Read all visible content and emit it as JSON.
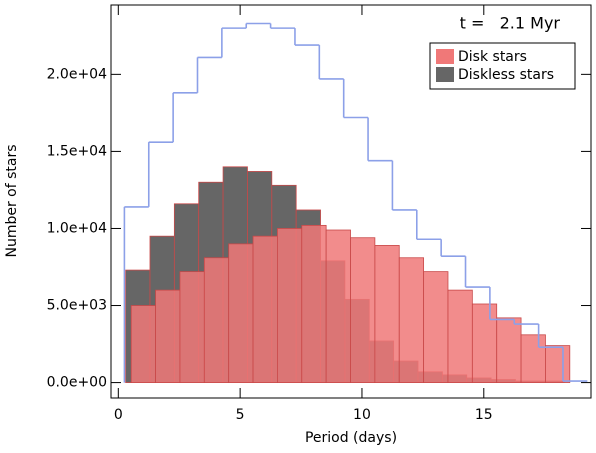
{
  "chart_data": {
    "type": "histogram",
    "annotation": "t =   2.1 Myr",
    "xlabel": "Period (days)",
    "ylabel": "Number of stars",
    "xlim": [
      -0.3,
      19.4
    ],
    "ylim": [
      -1000,
      24500
    ],
    "xticks": [
      0,
      5,
      10,
      15
    ],
    "yticks": [
      {
        "value": 0,
        "label": "0.0e+00"
      },
      {
        "value": 5000,
        "label": "5.0e+03"
      },
      {
        "value": 10000,
        "label": "1.0e+04"
      },
      {
        "value": 15000,
        "label": "1.5e+04"
      },
      {
        "value": 20000,
        "label": "2.0e+04"
      }
    ],
    "legend": "upper right",
    "series": [
      {
        "name": "Diskless stars",
        "color": "#666666",
        "style": "filled",
        "bins": [
          0.3,
          1.3,
          2.3,
          3.3,
          4.3,
          5.3,
          6.3,
          7.3,
          8.3,
          9.3,
          10.3,
          11.3,
          12.3,
          13.3,
          14.3,
          15.3,
          16.3,
          17.3,
          18.3
        ],
        "values": [
          7300,
          9500,
          11600,
          13000,
          14000,
          13700,
          12800,
          11200,
          7900,
          5400,
          2700,
          1400,
          700,
          500,
          300,
          200,
          100,
          100
        ]
      },
      {
        "name": "Disk stars",
        "color": "#f07878",
        "style": "filled",
        "bins": [
          0.53,
          1.53,
          2.53,
          3.53,
          4.53,
          5.53,
          6.53,
          7.53,
          8.53,
          9.53,
          10.53,
          11.53,
          12.53,
          13.53,
          14.53,
          15.53,
          16.53,
          17.53,
          18.53
        ],
        "values": [
          5000,
          6000,
          7200,
          8100,
          9000,
          9500,
          10000,
          10200,
          9900,
          9400,
          8900,
          8100,
          7200,
          6000,
          5100,
          4200,
          3100,
          2400
        ]
      },
      {
        "color": "#8ca0e8",
        "style": "step",
        "bins": [
          0.25,
          1.25,
          2.25,
          3.25,
          4.25,
          5.25,
          6.25,
          7.25,
          8.25,
          9.25,
          10.25,
          11.25,
          12.25,
          13.25,
          14.25,
          15.25,
          16.25,
          17.25,
          18.25,
          19.25
        ],
        "values": [
          11400,
          15600,
          18800,
          21100,
          23000,
          23300,
          23000,
          21900,
          19700,
          17200,
          14400,
          11200,
          9300,
          8200,
          6200,
          4100,
          3800,
          2300,
          100
        ]
      }
    ]
  }
}
